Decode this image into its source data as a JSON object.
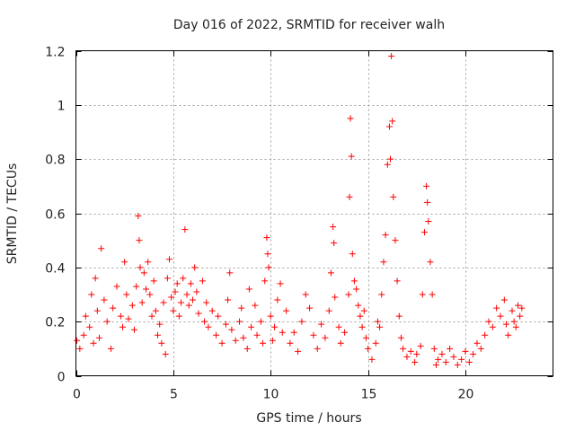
{
  "chart_data": {
    "type": "scatter",
    "title": "Day 016 of 2022, SRMTID for receiver walh",
    "xlabel": "GPS time / hours",
    "ylabel": "SRMTID / TECUs",
    "xlim": [
      0,
      24.5
    ],
    "ylim": [
      0,
      1.2
    ],
    "xticks": [
      0,
      5,
      10,
      15,
      20
    ],
    "xtick_labels": [
      "0",
      "5",
      "10",
      "15",
      "20"
    ],
    "yticks": [
      0,
      0.2,
      0.4,
      0.6,
      0.8,
      1.0,
      1.2
    ],
    "ytick_labels": [
      "0",
      "0.2",
      "0.4",
      "0.6",
      "0.8",
      "1",
      "1.2"
    ],
    "grid": true,
    "marker": "plus",
    "color": "#ff0000",
    "series": [
      {
        "name": "SRMTID",
        "points": [
          [
            0.05,
            0.13
          ],
          [
            0.2,
            0.1
          ],
          [
            0.4,
            0.15
          ],
          [
            0.5,
            0.22
          ],
          [
            0.7,
            0.18
          ],
          [
            0.8,
            0.3
          ],
          [
            0.9,
            0.12
          ],
          [
            1.0,
            0.36
          ],
          [
            1.1,
            0.24
          ],
          [
            1.2,
            0.14
          ],
          [
            1.3,
            0.47
          ],
          [
            1.45,
            0.28
          ],
          [
            1.6,
            0.2
          ],
          [
            1.8,
            0.1
          ],
          [
            1.9,
            0.25
          ],
          [
            2.1,
            0.33
          ],
          [
            2.3,
            0.22
          ],
          [
            2.4,
            0.18
          ],
          [
            2.5,
            0.42
          ],
          [
            2.6,
            0.3
          ],
          [
            2.7,
            0.21
          ],
          [
            2.9,
            0.26
          ],
          [
            3.0,
            0.17
          ],
          [
            3.1,
            0.33
          ],
          [
            3.2,
            0.59
          ],
          [
            3.25,
            0.5
          ],
          [
            3.3,
            0.4
          ],
          [
            3.4,
            0.27
          ],
          [
            3.5,
            0.38
          ],
          [
            3.6,
            0.32
          ],
          [
            3.7,
            0.42
          ],
          [
            3.8,
            0.3
          ],
          [
            3.9,
            0.22
          ],
          [
            4.0,
            0.35
          ],
          [
            4.1,
            0.24
          ],
          [
            4.2,
            0.15
          ],
          [
            4.3,
            0.19
          ],
          [
            4.4,
            0.12
          ],
          [
            4.5,
            0.27
          ],
          [
            4.6,
            0.08
          ],
          [
            4.7,
            0.36
          ],
          [
            4.8,
            0.43
          ],
          [
            4.9,
            0.29
          ],
          [
            5.0,
            0.24
          ],
          [
            5.1,
            0.31
          ],
          [
            5.2,
            0.34
          ],
          [
            5.3,
            0.22
          ],
          [
            5.4,
            0.27
          ],
          [
            5.5,
            0.36
          ],
          [
            5.6,
            0.54
          ],
          [
            5.7,
            0.3
          ],
          [
            5.8,
            0.26
          ],
          [
            5.9,
            0.34
          ],
          [
            6.0,
            0.28
          ],
          [
            6.1,
            0.4
          ],
          [
            6.2,
            0.31
          ],
          [
            6.3,
            0.23
          ],
          [
            6.5,
            0.35
          ],
          [
            6.6,
            0.2
          ],
          [
            6.7,
            0.27
          ],
          [
            6.8,
            0.18
          ],
          [
            7.0,
            0.24
          ],
          [
            7.2,
            0.15
          ],
          [
            7.3,
            0.22
          ],
          [
            7.5,
            0.12
          ],
          [
            7.7,
            0.19
          ],
          [
            7.8,
            0.28
          ],
          [
            7.9,
            0.38
          ],
          [
            8.0,
            0.17
          ],
          [
            8.2,
            0.13
          ],
          [
            8.4,
            0.2
          ],
          [
            8.5,
            0.25
          ],
          [
            8.6,
            0.14
          ],
          [
            8.8,
            0.1
          ],
          [
            8.9,
            0.32
          ],
          [
            9.0,
            0.18
          ],
          [
            9.2,
            0.26
          ],
          [
            9.3,
            0.15
          ],
          [
            9.5,
            0.2
          ],
          [
            9.6,
            0.12
          ],
          [
            9.7,
            0.35
          ],
          [
            9.8,
            0.51
          ],
          [
            9.85,
            0.45
          ],
          [
            9.9,
            0.4
          ],
          [
            10.0,
            0.22
          ],
          [
            10.1,
            0.13
          ],
          [
            10.2,
            0.18
          ],
          [
            10.35,
            0.28
          ],
          [
            10.5,
            0.34
          ],
          [
            10.6,
            0.16
          ],
          [
            10.8,
            0.24
          ],
          [
            11.0,
            0.12
          ],
          [
            11.2,
            0.16
          ],
          [
            11.4,
            0.09
          ],
          [
            11.6,
            0.2
          ],
          [
            11.8,
            0.3
          ],
          [
            12.0,
            0.25
          ],
          [
            12.2,
            0.15
          ],
          [
            12.4,
            0.1
          ],
          [
            12.6,
            0.19
          ],
          [
            12.8,
            0.14
          ],
          [
            13.0,
            0.24
          ],
          [
            13.1,
            0.38
          ],
          [
            13.2,
            0.55
          ],
          [
            13.25,
            0.49
          ],
          [
            13.3,
            0.29
          ],
          [
            13.5,
            0.18
          ],
          [
            13.6,
            0.12
          ],
          [
            13.8,
            0.16
          ],
          [
            14.0,
            0.3
          ],
          [
            14.05,
            0.66
          ],
          [
            14.1,
            0.95
          ],
          [
            14.15,
            0.81
          ],
          [
            14.2,
            0.45
          ],
          [
            14.3,
            0.35
          ],
          [
            14.4,
            0.32
          ],
          [
            14.5,
            0.26
          ],
          [
            14.6,
            0.22
          ],
          [
            14.7,
            0.18
          ],
          [
            14.8,
            0.24
          ],
          [
            14.9,
            0.14
          ],
          [
            15.0,
            0.1
          ],
          [
            15.2,
            0.06
          ],
          [
            15.4,
            0.12
          ],
          [
            15.5,
            0.2
          ],
          [
            15.6,
            0.18
          ],
          [
            15.7,
            0.3
          ],
          [
            15.8,
            0.42
          ],
          [
            15.9,
            0.52
          ],
          [
            16.0,
            0.78
          ],
          [
            16.1,
            0.92
          ],
          [
            16.15,
            0.8
          ],
          [
            16.2,
            1.18
          ],
          [
            16.25,
            0.94
          ],
          [
            16.3,
            0.66
          ],
          [
            16.4,
            0.5
          ],
          [
            16.5,
            0.35
          ],
          [
            16.6,
            0.22
          ],
          [
            16.7,
            0.14
          ],
          [
            16.8,
            0.1
          ],
          [
            17.0,
            0.07
          ],
          [
            17.2,
            0.09
          ],
          [
            17.4,
            0.05
          ],
          [
            17.5,
            0.08
          ],
          [
            17.7,
            0.11
          ],
          [
            17.8,
            0.3
          ],
          [
            17.9,
            0.53
          ],
          [
            18.0,
            0.7
          ],
          [
            18.05,
            0.64
          ],
          [
            18.1,
            0.57
          ],
          [
            18.2,
            0.42
          ],
          [
            18.3,
            0.3
          ],
          [
            18.4,
            0.1
          ],
          [
            18.5,
            0.04
          ],
          [
            18.6,
            0.06
          ],
          [
            18.8,
            0.08
          ],
          [
            19.0,
            0.05
          ],
          [
            19.2,
            0.1
          ],
          [
            19.4,
            0.07
          ],
          [
            19.6,
            0.04
          ],
          [
            19.8,
            0.06
          ],
          [
            20.0,
            0.09
          ],
          [
            20.2,
            0.05
          ],
          [
            20.4,
            0.08
          ],
          [
            20.6,
            0.12
          ],
          [
            20.8,
            0.1
          ],
          [
            21.0,
            0.15
          ],
          [
            21.2,
            0.2
          ],
          [
            21.4,
            0.18
          ],
          [
            21.6,
            0.25
          ],
          [
            21.8,
            0.22
          ],
          [
            22.0,
            0.28
          ],
          [
            22.1,
            0.19
          ],
          [
            22.2,
            0.15
          ],
          [
            22.4,
            0.24
          ],
          [
            22.5,
            0.2
          ],
          [
            22.6,
            0.18
          ],
          [
            22.7,
            0.26
          ],
          [
            22.8,
            0.22
          ],
          [
            22.9,
            0.25
          ]
        ]
      }
    ]
  }
}
